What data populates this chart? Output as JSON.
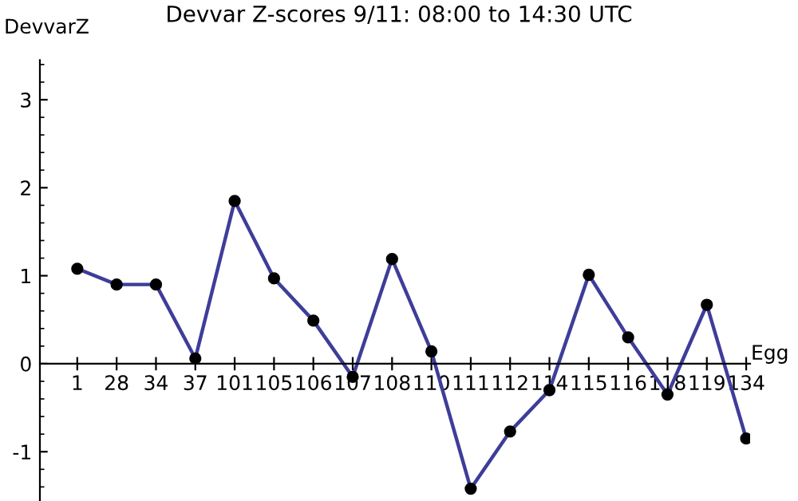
{
  "chart_data": {
    "type": "line",
    "title": "Devvar Z-scores 9/11: 08:00 to 14:30 UTC",
    "xlabel": "Egg",
    "ylabel": "DevvarZ",
    "categories": [
      "1",
      "28",
      "34",
      "37",
      "101",
      "105",
      "106",
      "107",
      "108",
      "110",
      "111",
      "112",
      "114",
      "115",
      "116",
      "118",
      "119",
      "134"
    ],
    "series": [
      {
        "color": "#3f3d99",
        "values": [
          1.08,
          0.9,
          0.9,
          0.06,
          1.85,
          0.97,
          0.49,
          -0.15,
          1.19,
          0.14,
          -1.42,
          -0.77,
          -0.3,
          1.01,
          0.3,
          -0.35,
          0.67,
          -0.85
        ]
      }
    ],
    "ylim": [
      -1.56,
      3.45
    ],
    "yticks": [
      -1,
      0,
      1,
      2,
      3
    ],
    "marker": "circle",
    "line_style": "solid",
    "grid": false,
    "legend": false
  }
}
